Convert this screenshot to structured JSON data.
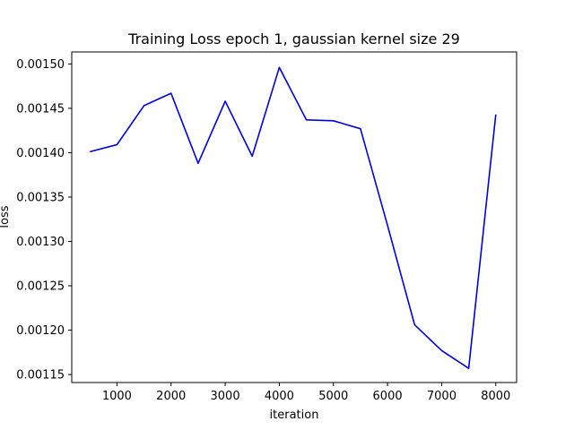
{
  "chart_data": {
    "type": "line",
    "title": "Training Loss epoch 1, gaussian kernel size 29",
    "xlabel": "iteration",
    "ylabel": "loss",
    "xlim": [
      165,
      8385
    ],
    "ylim": [
      0.001141,
      0.0015135
    ],
    "xticks": [
      1000,
      2000,
      3000,
      4000,
      5000,
      6000,
      7000,
      8000
    ],
    "xtick_labels": [
      "1000",
      "2000",
      "3000",
      "4000",
      "5000",
      "6000",
      "7000",
      "8000"
    ],
    "yticks": [
      0.00115,
      0.0012,
      0.00125,
      0.0013,
      0.00135,
      0.0014,
      0.00145,
      0.0015
    ],
    "ytick_labels": [
      "0.00115",
      "0.00120",
      "0.00125",
      "0.00130",
      "0.00135",
      "0.00140",
      "0.00145",
      "0.00150"
    ],
    "grid": false,
    "series": [
      {
        "color": "#0000dd",
        "x": [
          500,
          1000,
          1500,
          2000,
          2500,
          3000,
          3500,
          4000,
          4500,
          5000,
          5500,
          6000,
          6500,
          7000,
          7500,
          8000
        ],
        "y": [
          0.001401,
          0.001409,
          0.001453,
          0.001467,
          0.001388,
          0.001458,
          0.001396,
          0.001496,
          0.001437,
          0.001436,
          0.001427,
          0.001318,
          0.001206,
          0.001177,
          0.001157,
          0.001443
        ]
      }
    ]
  }
}
